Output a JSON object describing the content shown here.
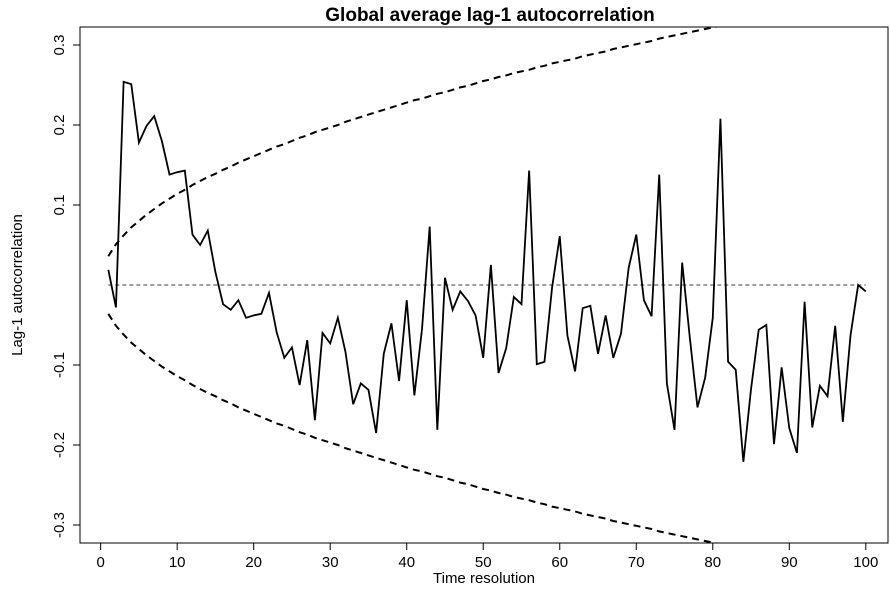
{
  "chart_data": {
    "type": "line",
    "title": "Global average lag-1 autocorrelation",
    "x_label": "Time resolution",
    "y_label": "Lag-1 autocorrelation",
    "x": [
      1,
      2,
      3,
      4,
      5,
      6,
      7,
      8,
      9,
      10,
      11,
      12,
      13,
      14,
      15,
      16,
      17,
      18,
      19,
      20,
      21,
      22,
      23,
      24,
      25,
      26,
      27,
      28,
      29,
      30,
      31,
      32,
      33,
      34,
      35,
      36,
      37,
      38,
      39,
      40,
      41,
      42,
      43,
      44,
      45,
      46,
      47,
      48,
      49,
      50,
      51,
      52,
      53,
      54,
      55,
      56,
      57,
      58,
      59,
      60,
      61,
      62,
      63,
      64,
      65,
      66,
      67,
      68,
      69,
      70,
      71,
      72,
      73,
      74,
      75,
      76,
      77,
      78,
      79,
      80,
      81,
      82,
      83,
      84,
      85,
      86,
      87,
      88,
      89,
      90,
      91,
      92,
      93,
      94,
      95,
      96,
      97,
      98,
      99,
      100
    ],
    "series": [
      {
        "color": "#000000",
        "dash": false,
        "values": [
          0.019,
          -0.028,
          0.254,
          0.251,
          0.178,
          0.199,
          0.211,
          0.18,
          0.138,
          0.141,
          0.143,
          0.063,
          0.05,
          0.068,
          0.016,
          -0.024,
          -0.031,
          -0.019,
          -0.041,
          -0.038,
          -0.036,
          -0.01,
          -0.059,
          -0.091,
          -0.078,
          -0.125,
          -0.069,
          -0.169,
          -0.06,
          -0.073,
          -0.041,
          -0.084,
          -0.149,
          -0.123,
          -0.131,
          -0.185,
          -0.086,
          -0.048,
          -0.12,
          -0.019,
          -0.138,
          -0.055,
          0.073,
          -0.181,
          0.009,
          -0.031,
          -0.008,
          -0.02,
          -0.038,
          -0.091,
          0.025,
          -0.11,
          -0.079,
          -0.015,
          -0.024,
          0.143,
          -0.099,
          -0.096,
          -0.003,
          0.061,
          -0.063,
          -0.108,
          -0.029,
          -0.026,
          -0.086,
          -0.038,
          -0.091,
          -0.061,
          0.021,
          0.063,
          -0.019,
          -0.039,
          0.138,
          -0.123,
          -0.181,
          0.028,
          -0.066,
          -0.153,
          -0.116,
          -0.041,
          0.208,
          -0.096,
          -0.106,
          -0.221,
          -0.13,
          -0.056,
          -0.05,
          -0.199,
          -0.103,
          -0.179,
          -0.21,
          -0.021,
          -0.178,
          -0.126,
          -0.139,
          -0.051,
          -0.171,
          -0.063,
          0,
          -0.008
        ]
      },
      {
        "color": "#000000",
        "dash": true,
        "values": [
          0.036,
          0.051,
          0.062,
          0.072,
          0.08,
          0.088,
          0.095,
          0.102,
          0.108,
          0.114,
          0.119,
          0.125,
          0.13,
          0.135,
          0.139,
          0.144,
          0.148,
          0.153,
          0.157,
          0.161,
          0.165,
          0.169,
          0.173,
          0.176,
          0.18,
          0.184,
          0.187,
          0.191,
          0.194,
          0.197,
          0.2,
          0.204,
          0.207,
          0.21,
          0.213,
          0.216,
          0.219,
          0.222,
          0.225,
          0.228,
          0.231,
          0.233,
          0.236,
          0.239,
          0.241,
          0.244,
          0.247,
          0.249,
          0.252,
          0.255,
          0.257,
          0.26,
          0.262,
          0.265,
          0.267,
          0.269,
          0.272,
          0.274,
          0.277,
          0.279,
          0.281,
          0.283,
          0.286,
          0.288,
          0.29,
          0.292,
          0.295,
          0.297,
          0.299,
          0.301,
          0.303,
          0.305,
          0.308,
          0.31,
          0.312,
          0.314,
          0.316,
          0.318,
          0.32,
          0.322,
          0.324,
          0.326,
          0.328,
          0.33,
          0.332,
          0.334,
          0.336,
          0.338,
          0.34,
          0.342,
          0.343,
          0.345,
          0.347,
          0.349,
          0.351,
          0.353,
          0.355,
          0.356,
          0.358,
          0.36
        ]
      },
      {
        "color": "#000000",
        "dash": true,
        "values": [
          -0.036,
          -0.051,
          -0.062,
          -0.072,
          -0.08,
          -0.088,
          -0.095,
          -0.102,
          -0.108,
          -0.114,
          -0.119,
          -0.125,
          -0.13,
          -0.135,
          -0.139,
          -0.144,
          -0.148,
          -0.153,
          -0.157,
          -0.161,
          -0.165,
          -0.169,
          -0.173,
          -0.176,
          -0.18,
          -0.184,
          -0.187,
          -0.191,
          -0.194,
          -0.197,
          -0.2,
          -0.204,
          -0.207,
          -0.21,
          -0.213,
          -0.216,
          -0.219,
          -0.222,
          -0.225,
          -0.228,
          -0.231,
          -0.233,
          -0.236,
          -0.239,
          -0.241,
          -0.244,
          -0.247,
          -0.249,
          -0.252,
          -0.255,
          -0.257,
          -0.26,
          -0.262,
          -0.265,
          -0.267,
          -0.269,
          -0.272,
          -0.274,
          -0.277,
          -0.279,
          -0.281,
          -0.283,
          -0.286,
          -0.288,
          -0.29,
          -0.292,
          -0.295,
          -0.297,
          -0.299,
          -0.301,
          -0.303,
          -0.305,
          -0.308,
          -0.31,
          -0.312,
          -0.314,
          -0.316,
          -0.318,
          -0.32,
          -0.322,
          -0.324,
          -0.326,
          -0.328,
          -0.33,
          -0.332,
          -0.334,
          -0.336,
          -0.338,
          -0.34,
          -0.342,
          -0.343,
          -0.345,
          -0.347,
          -0.349,
          -0.351,
          -0.353,
          -0.355,
          -0.356,
          -0.358,
          -0.36
        ]
      }
    ],
    "hline": 0,
    "xlim": [
      -2.7,
      102.9
    ],
    "ylim": [
      -0.3225,
      0.3225
    ],
    "xticks": [
      0,
      10,
      20,
      30,
      40,
      50,
      60,
      70,
      80,
      90,
      100
    ],
    "yticks": [
      -0.3,
      -0.2,
      -0.1,
      0.1,
      0.2,
      0.3
    ],
    "grid": false
  }
}
